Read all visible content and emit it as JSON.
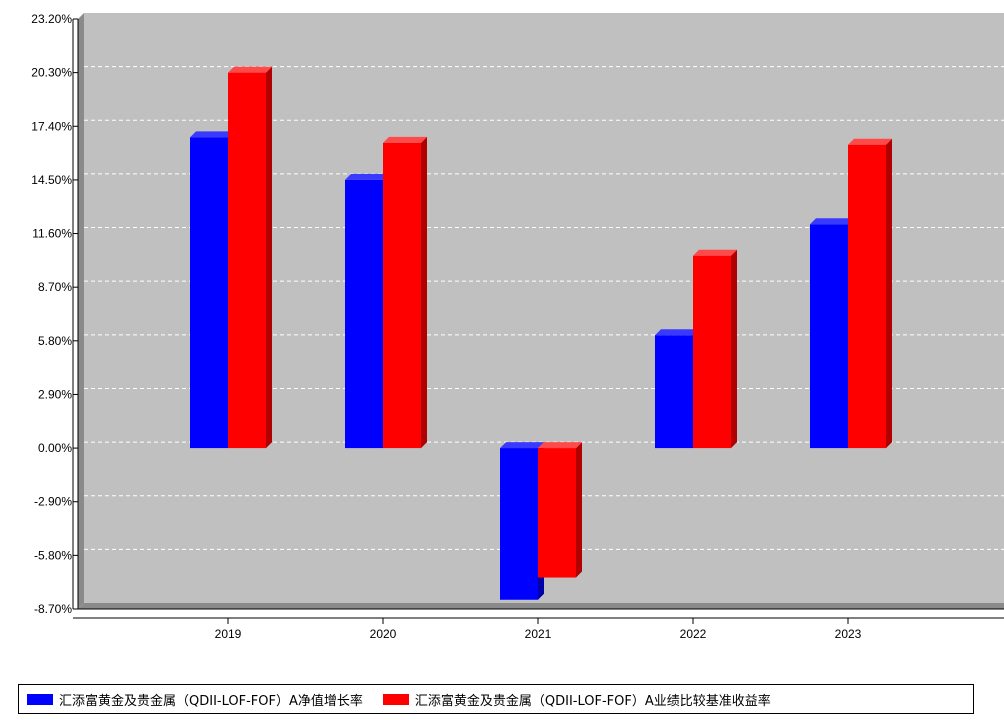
{
  "chart_data": {
    "type": "bar",
    "categories": [
      "2019",
      "2020",
      "2021",
      "2022",
      "2023"
    ],
    "series": [
      {
        "name": "汇添富黄金及贵金属（QDII-LOF-FOF）A净值增长率",
        "color": "#0000ff",
        "values": [
          16.8,
          14.5,
          -8.2,
          6.1,
          12.1
        ]
      },
      {
        "name": "汇添富黄金及贵金属（QDII-LOF-FOF）A业绩比较基准收益率",
        "color": "#ff0000",
        "values": [
          20.3,
          16.5,
          -7.0,
          10.4,
          16.4
        ]
      }
    ],
    "ylim": [
      -8.7,
      23.2
    ],
    "yticks": [
      "23.20%",
      "20.30%",
      "17.40%",
      "14.50%",
      "11.60%",
      "8.70%",
      "5.80%",
      "2.90%",
      "0.00%",
      "-2.90%",
      "-5.80%",
      "-8.70%"
    ],
    "title": "",
    "xlabel": "",
    "ylabel": "",
    "grid": true,
    "legend": "bottom"
  }
}
